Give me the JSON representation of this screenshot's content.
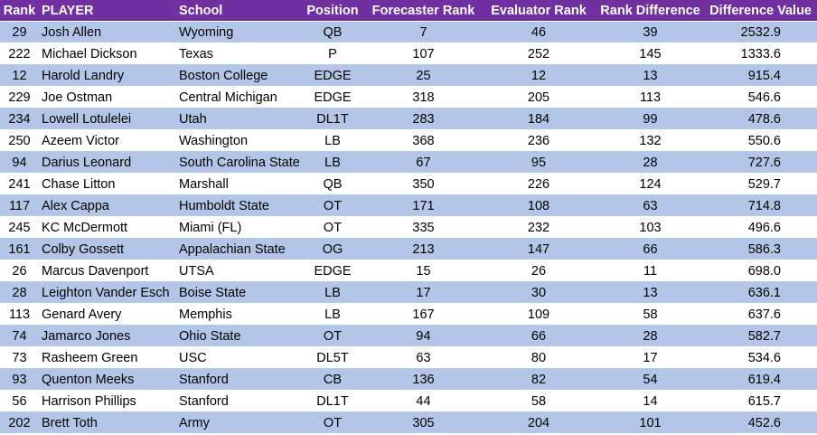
{
  "table": {
    "headers": [
      "Rank",
      "PLAYER",
      "School",
      "Position",
      "Forecaster Rank",
      "Evaluator Rank",
      "Rank Difference",
      "Difference Value"
    ],
    "rows": [
      [
        "29",
        "Josh Allen",
        "Wyoming",
        "QB",
        "7",
        "46",
        "39",
        "2532.9"
      ],
      [
        "222",
        "Michael Dickson",
        "Texas",
        "P",
        "107",
        "252",
        "145",
        "1333.6"
      ],
      [
        "12",
        "Harold Landry",
        "Boston College",
        "EDGE",
        "25",
        "12",
        "13",
        "915.4"
      ],
      [
        "229",
        "Joe Ostman",
        "Central Michigan",
        "EDGE",
        "318",
        "205",
        "113",
        "546.6"
      ],
      [
        "234",
        "Lowell Lotulelei",
        "Utah",
        "DL1T",
        "283",
        "184",
        "99",
        "478.6"
      ],
      [
        "250",
        "Azeem Victor",
        "Washington",
        "LB",
        "368",
        "236",
        "132",
        "550.6"
      ],
      [
        "94",
        "Darius Leonard",
        "South Carolina State",
        "LB",
        "67",
        "95",
        "28",
        "727.6"
      ],
      [
        "241",
        "Chase Litton",
        "Marshall",
        "QB",
        "350",
        "226",
        "124",
        "529.7"
      ],
      [
        "117",
        "Alex Cappa",
        "Humboldt State",
        "OT",
        "171",
        "108",
        "63",
        "714.8"
      ],
      [
        "245",
        "KC McDermott",
        "Miami (FL)",
        "OT",
        "335",
        "232",
        "103",
        "496.6"
      ],
      [
        "161",
        "Colby Gossett",
        "Appalachian State",
        "OG",
        "213",
        "147",
        "66",
        "586.3"
      ],
      [
        "26",
        "Marcus Davenport",
        "UTSA",
        "EDGE",
        "15",
        "26",
        "11",
        "698.0"
      ],
      [
        "28",
        "Leighton Vander Esch",
        "Boise State",
        "LB",
        "17",
        "30",
        "13",
        "636.1"
      ],
      [
        "113",
        "Genard Avery",
        "Memphis",
        "LB",
        "167",
        "109",
        "58",
        "637.6"
      ],
      [
        "74",
        "Jamarco Jones",
        "Ohio State",
        "OT",
        "94",
        "66",
        "28",
        "582.7"
      ],
      [
        "73",
        "Rasheem Green",
        "USC",
        "DL5T",
        "63",
        "80",
        "17",
        "534.6"
      ],
      [
        "93",
        "Quenton Meeks",
        "Stanford",
        "CB",
        "136",
        "82",
        "54",
        "619.4"
      ],
      [
        "56",
        "Harrison Phillips",
        "Stanford",
        "DL1T",
        "44",
        "58",
        "14",
        "615.7"
      ],
      [
        "202",
        "Brett Toth",
        "Army",
        "OT",
        "305",
        "204",
        "101",
        "452.6"
      ]
    ]
  },
  "colors": {
    "header_bg": "#7030a0",
    "header_text": "#ffffff",
    "band_bg": "#b4c6e7",
    "row_bg": "#ffffff"
  }
}
